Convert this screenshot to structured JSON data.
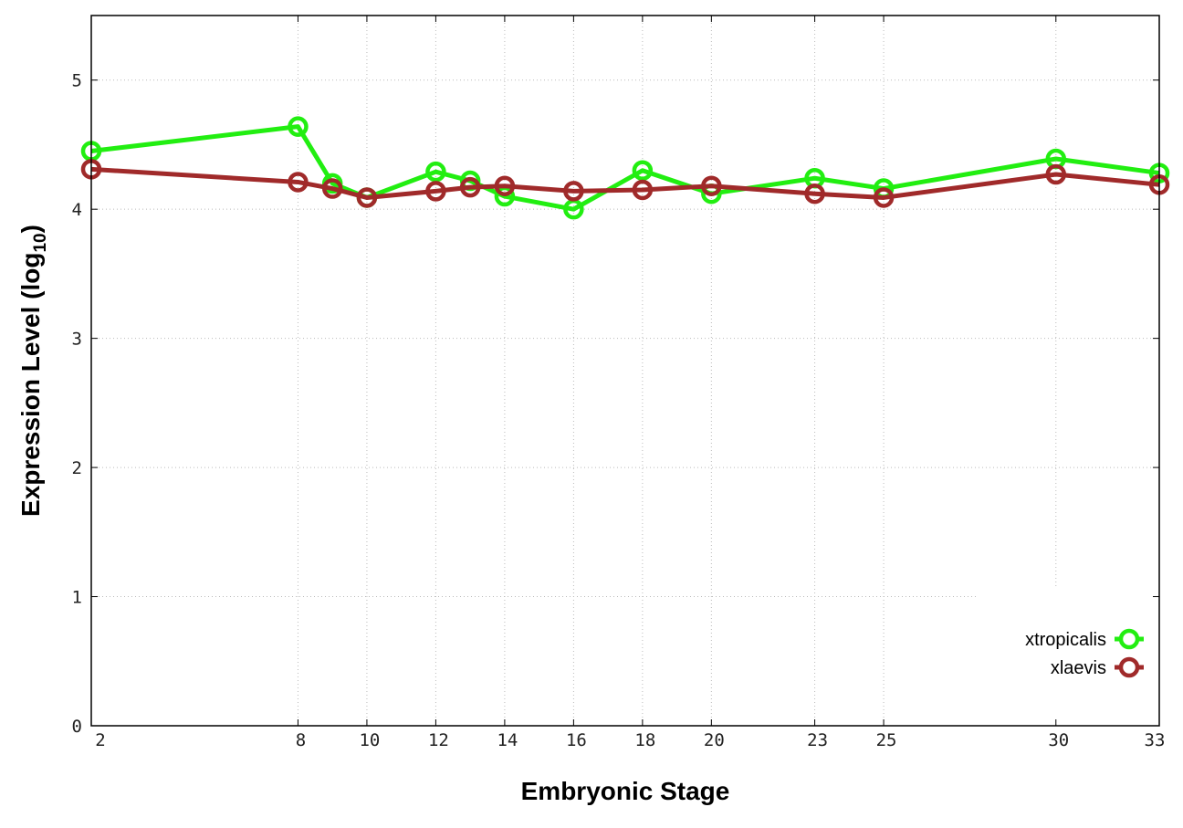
{
  "chart_data": {
    "type": "line",
    "title": "",
    "xlabel": "Embryonic Stage",
    "ylabel": {
      "main": "Expression Level (log",
      "sub": "10",
      "close": ")"
    },
    "x_ticks": [
      2,
      8,
      10,
      12,
      14,
      16,
      18,
      20,
      23,
      25,
      30,
      33
    ],
    "y_ticks": [
      0,
      1,
      2,
      3,
      4,
      5
    ],
    "xlim": [
      2,
      33
    ],
    "ylim": [
      0,
      5.5
    ],
    "grid": true,
    "legend_position": "bottom-right",
    "series": [
      {
        "name": "xtropicalis",
        "color": "#22ee11",
        "x": [
          2,
          8,
          9,
          10,
          12,
          13,
          14,
          16,
          18,
          20,
          23,
          25,
          30,
          33
        ],
        "y": [
          4.45,
          4.64,
          4.2,
          4.09,
          4.29,
          4.22,
          4.1,
          4.0,
          4.3,
          4.12,
          4.24,
          4.16,
          4.39,
          4.28
        ]
      },
      {
        "name": "xlaevis",
        "color": "#a02a2a",
        "x": [
          2,
          8,
          9,
          10,
          12,
          13,
          14,
          16,
          18,
          20,
          23,
          25,
          30,
          33
        ],
        "y": [
          4.31,
          4.21,
          4.16,
          4.09,
          4.14,
          4.17,
          4.18,
          4.14,
          4.15,
          4.18,
          4.12,
          4.09,
          4.27,
          4.19
        ]
      }
    ]
  }
}
